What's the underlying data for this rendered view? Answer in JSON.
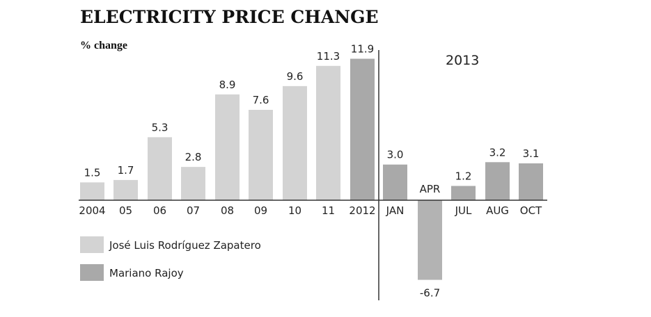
{
  "chart_data": {
    "type": "bar",
    "title": "ELECTRICITY PRICE CHANGE",
    "ylabel": "% change",
    "xlabel": "",
    "section_label": "2013",
    "categories": [
      "2004",
      "05",
      "06",
      "07",
      "08",
      "09",
      "10",
      "11",
      "2012",
      "JAN",
      "APR",
      "JUL",
      "AUG",
      "OCT"
    ],
    "values": [
      1.5,
      1.7,
      5.3,
      2.8,
      8.9,
      7.6,
      9.6,
      11.3,
      11.9,
      3.0,
      -6.7,
      1.2,
      3.2,
      3.1
    ],
    "value_labels": [
      "1.5",
      "1.7",
      "5.3",
      "2.8",
      "8.9",
      "7.6",
      "9.6",
      "11.3",
      "11.9",
      "3.0",
      "-6.7",
      "1.2",
      "3.2",
      "3.1"
    ],
    "series_index": [
      0,
      0,
      0,
      0,
      0,
      0,
      0,
      0,
      1,
      1,
      1,
      1,
      1,
      1
    ],
    "series": [
      {
        "name": "José Luis Rodríguez Zapatero",
        "color": "#d3d3d3"
      },
      {
        "name": "Mariano Rajoy",
        "color": "#a9a9a9"
      }
    ],
    "ylim": [
      -6.7,
      11.9
    ],
    "grid": false,
    "legend_position": "bottom-left"
  }
}
